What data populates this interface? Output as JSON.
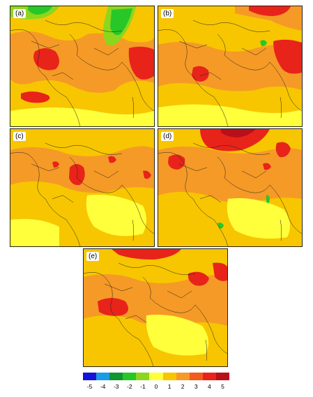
{
  "panels": [
    {
      "label": "(a)",
      "accent": "#e8231a"
    },
    {
      "label": "(b)",
      "accent": "#e8231a"
    },
    {
      "label": "(c)",
      "accent": "#e8231a"
    },
    {
      "label": "(d)",
      "accent": "#e8231a"
    },
    {
      "label": "(e)",
      "accent": "#e8231a"
    }
  ],
  "colorbar": {
    "colors": [
      "#1414d6",
      "#1a9be6",
      "#12962e",
      "#28c728",
      "#8ed61e",
      "#ffff3c",
      "#f7c600",
      "#f59a26",
      "#f25a1e",
      "#e8231a",
      "#b8101a"
    ],
    "ticks": [
      "-5",
      "-4",
      "-3",
      "-2",
      "-1",
      "0",
      "1",
      "2",
      "3",
      "4",
      "5"
    ]
  }
}
